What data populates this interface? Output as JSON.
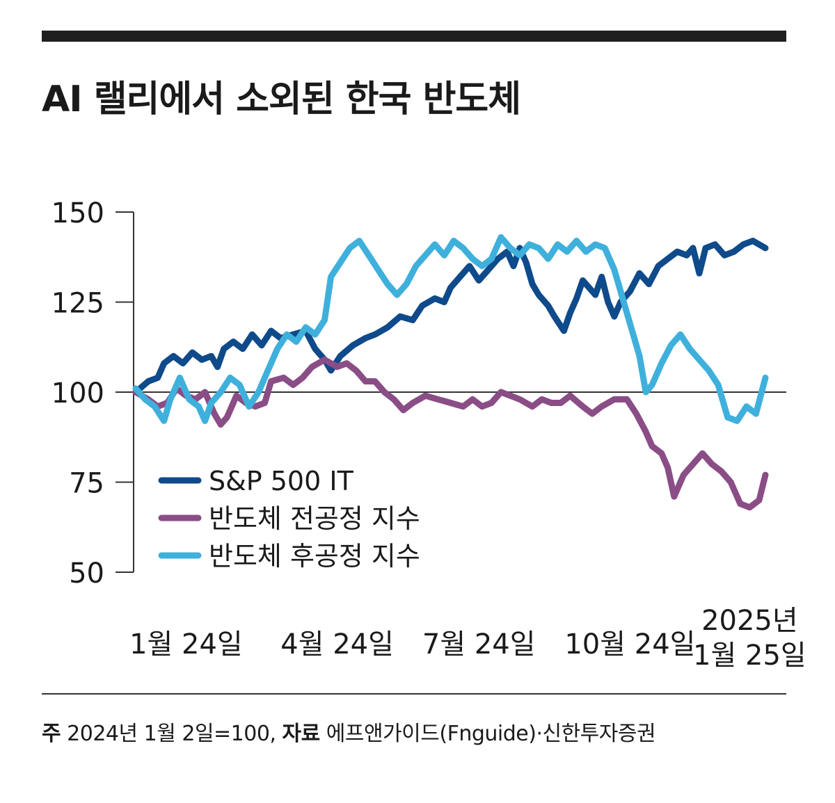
{
  "title": "AI 랠리에서 소외된 한국 반도체",
  "footnote": {
    "note_label": "주",
    "note_text": "2024년 1월 2일=100,",
    "source_label": "자료",
    "source_text": "에프앤가이드(Fnguide)·신한투자증권"
  },
  "colors": {
    "sp500_it": "#0f4a8a",
    "front_end": "#8a4d86",
    "back_end": "#3fb0dc",
    "axis": "#333333",
    "text": "#1a1a1a"
  },
  "chart_data": {
    "type": "line",
    "title": "AI 랠리에서 소외된 한국 반도체",
    "xlabel": "",
    "ylabel": "",
    "ylim": [
      50,
      150
    ],
    "yticks": [
      50,
      75,
      100,
      125,
      150
    ],
    "reference_line": 100,
    "x_tick_labels": [
      {
        "lines": [
          "1월 24일"
        ],
        "t": 0.08
      },
      {
        "lines": [
          "4월 24일"
        ],
        "t": 0.32
      },
      {
        "lines": [
          "7월 24일"
        ],
        "t": 0.545
      },
      {
        "lines": [
          "10월 24일"
        ],
        "t": 0.785
      },
      {
        "lines": [
          "2025년",
          "1월 25일"
        ],
        "t": 0.975
      }
    ],
    "legend": {
      "placement": "lower-left",
      "entries": [
        "S&P 500 IT",
        "반도체 전공정 지수",
        "반도체 후공정 지수"
      ]
    },
    "series": [
      {
        "name": "S&P 500 IT",
        "color": "#0f4a8a",
        "points": [
          [
            0,
            100
          ],
          [
            0.02,
            103
          ],
          [
            0.035,
            104
          ],
          [
            0.045,
            108
          ],
          [
            0.06,
            110
          ],
          [
            0.075,
            108
          ],
          [
            0.09,
            111
          ],
          [
            0.105,
            109
          ],
          [
            0.12,
            110
          ],
          [
            0.13,
            107
          ],
          [
            0.14,
            112
          ],
          [
            0.155,
            114
          ],
          [
            0.17,
            112
          ],
          [
            0.185,
            116
          ],
          [
            0.2,
            113
          ],
          [
            0.215,
            117
          ],
          [
            0.23,
            115
          ],
          [
            0.25,
            116
          ],
          [
            0.27,
            117
          ],
          [
            0.285,
            112
          ],
          [
            0.3,
            109
          ],
          [
            0.31,
            106
          ],
          [
            0.325,
            110
          ],
          [
            0.345,
            113
          ],
          [
            0.365,
            115
          ],
          [
            0.38,
            116
          ],
          [
            0.4,
            118
          ],
          [
            0.42,
            121
          ],
          [
            0.44,
            120
          ],
          [
            0.455,
            124
          ],
          [
            0.475,
            126
          ],
          [
            0.49,
            125
          ],
          [
            0.5,
            129
          ],
          [
            0.515,
            132
          ],
          [
            0.53,
            135
          ],
          [
            0.545,
            131
          ],
          [
            0.56,
            134
          ],
          [
            0.575,
            137
          ],
          [
            0.59,
            139
          ],
          [
            0.6,
            135
          ],
          [
            0.61,
            140
          ],
          [
            0.62,
            136
          ],
          [
            0.63,
            130
          ],
          [
            0.64,
            127
          ],
          [
            0.655,
            124
          ],
          [
            0.665,
            121
          ],
          [
            0.68,
            117
          ],
          [
            0.69,
            122
          ],
          [
            0.7,
            126
          ],
          [
            0.71,
            131
          ],
          [
            0.72,
            129
          ],
          [
            0.73,
            127
          ],
          [
            0.74,
            132
          ],
          [
            0.75,
            125
          ],
          [
            0.76,
            121
          ],
          [
            0.77,
            125
          ],
          [
            0.785,
            128
          ],
          [
            0.8,
            133
          ],
          [
            0.815,
            130
          ],
          [
            0.83,
            135
          ],
          [
            0.845,
            137
          ],
          [
            0.86,
            139
          ],
          [
            0.875,
            138
          ],
          [
            0.885,
            140
          ],
          [
            0.895,
            133
          ],
          [
            0.905,
            140
          ],
          [
            0.92,
            141
          ],
          [
            0.935,
            138
          ],
          [
            0.95,
            139
          ],
          [
            0.965,
            141
          ],
          [
            0.98,
            142
          ],
          [
            1,
            140
          ]
        ]
      },
      {
        "name": "반도체 전공정 지수",
        "color": "#8a4d86",
        "points": [
          [
            0,
            100
          ],
          [
            0.02,
            98
          ],
          [
            0.035,
            96
          ],
          [
            0.05,
            97
          ],
          [
            0.065,
            101
          ],
          [
            0.08,
            99
          ],
          [
            0.095,
            98
          ],
          [
            0.11,
            100
          ],
          [
            0.125,
            94
          ],
          [
            0.135,
            91
          ],
          [
            0.145,
            93
          ],
          [
            0.16,
            99
          ],
          [
            0.175,
            97
          ],
          [
            0.19,
            96
          ],
          [
            0.205,
            97
          ],
          [
            0.215,
            103
          ],
          [
            0.235,
            104
          ],
          [
            0.25,
            102
          ],
          [
            0.265,
            104
          ],
          [
            0.28,
            107
          ],
          [
            0.3,
            109
          ],
          [
            0.32,
            107
          ],
          [
            0.335,
            108
          ],
          [
            0.35,
            106
          ],
          [
            0.365,
            103
          ],
          [
            0.38,
            103
          ],
          [
            0.395,
            100
          ],
          [
            0.41,
            98
          ],
          [
            0.425,
            95
          ],
          [
            0.44,
            97
          ],
          [
            0.46,
            99
          ],
          [
            0.48,
            98
          ],
          [
            0.5,
            97
          ],
          [
            0.52,
            96
          ],
          [
            0.535,
            98
          ],
          [
            0.55,
            96
          ],
          [
            0.565,
            97
          ],
          [
            0.58,
            100
          ],
          [
            0.595,
            99
          ],
          [
            0.61,
            98
          ],
          [
            0.63,
            96
          ],
          [
            0.645,
            98
          ],
          [
            0.66,
            97
          ],
          [
            0.675,
            97
          ],
          [
            0.69,
            99
          ],
          [
            0.71,
            96
          ],
          [
            0.725,
            94
          ],
          [
            0.74,
            96
          ],
          [
            0.76,
            98
          ],
          [
            0.78,
            98
          ],
          [
            0.795,
            94
          ],
          [
            0.81,
            89
          ],
          [
            0.82,
            85
          ],
          [
            0.835,
            83
          ],
          [
            0.845,
            79
          ],
          [
            0.855,
            71
          ],
          [
            0.87,
            77
          ],
          [
            0.885,
            80
          ],
          [
            0.9,
            83
          ],
          [
            0.915,
            80
          ],
          [
            0.93,
            78
          ],
          [
            0.945,
            75
          ],
          [
            0.96,
            69
          ],
          [
            0.975,
            68
          ],
          [
            0.99,
            70
          ],
          [
            1,
            77
          ]
        ]
      },
      {
        "name": "반도체 후공정 지수",
        "color": "#3fb0dc",
        "points": [
          [
            0,
            101
          ],
          [
            0.015,
            98
          ],
          [
            0.03,
            96
          ],
          [
            0.045,
            92
          ],
          [
            0.055,
            98
          ],
          [
            0.07,
            104
          ],
          [
            0.085,
            98
          ],
          [
            0.1,
            96
          ],
          [
            0.11,
            92
          ],
          [
            0.12,
            97
          ],
          [
            0.135,
            100
          ],
          [
            0.15,
            104
          ],
          [
            0.165,
            102
          ],
          [
            0.18,
            96
          ],
          [
            0.195,
            100
          ],
          [
            0.21,
            106
          ],
          [
            0.225,
            112
          ],
          [
            0.24,
            116
          ],
          [
            0.255,
            114
          ],
          [
            0.27,
            118
          ],
          [
            0.285,
            116
          ],
          [
            0.3,
            120
          ],
          [
            0.31,
            132
          ],
          [
            0.325,
            136
          ],
          [
            0.34,
            140
          ],
          [
            0.355,
            142
          ],
          [
            0.37,
            138
          ],
          [
            0.385,
            134
          ],
          [
            0.4,
            130
          ],
          [
            0.415,
            127
          ],
          [
            0.43,
            130
          ],
          [
            0.445,
            135
          ],
          [
            0.46,
            138
          ],
          [
            0.475,
            141
          ],
          [
            0.49,
            138
          ],
          [
            0.505,
            142
          ],
          [
            0.52,
            140
          ],
          [
            0.535,
            137
          ],
          [
            0.55,
            135
          ],
          [
            0.565,
            137
          ],
          [
            0.58,
            143
          ],
          [
            0.595,
            140
          ],
          [
            0.61,
            138
          ],
          [
            0.625,
            141
          ],
          [
            0.64,
            140
          ],
          [
            0.655,
            137
          ],
          [
            0.67,
            141
          ],
          [
            0.685,
            139
          ],
          [
            0.7,
            142
          ],
          [
            0.715,
            139
          ],
          [
            0.73,
            141
          ],
          [
            0.745,
            140
          ],
          [
            0.76,
            134
          ],
          [
            0.77,
            128
          ],
          [
            0.78,
            122
          ],
          [
            0.79,
            116
          ],
          [
            0.8,
            110
          ],
          [
            0.81,
            100
          ],
          [
            0.82,
            102
          ],
          [
            0.835,
            108
          ],
          [
            0.85,
            113
          ],
          [
            0.865,
            116
          ],
          [
            0.88,
            112
          ],
          [
            0.895,
            109
          ],
          [
            0.91,
            106
          ],
          [
            0.925,
            102
          ],
          [
            0.94,
            93
          ],
          [
            0.955,
            92
          ],
          [
            0.97,
            96
          ],
          [
            0.985,
            94
          ],
          [
            1,
            104
          ]
        ]
      }
    ]
  }
}
